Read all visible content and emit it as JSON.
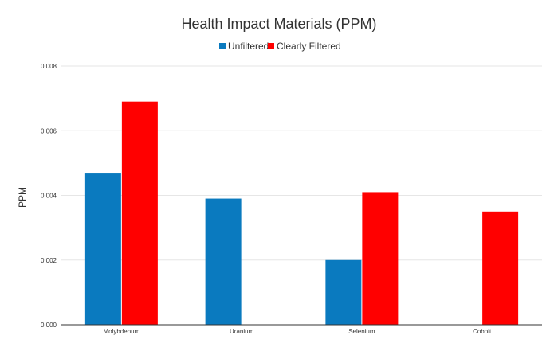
{
  "chart_data": {
    "type": "bar",
    "title": "Health Impact Materials (PPM)",
    "xlabel": "",
    "ylabel": "PPM",
    "categories": [
      "Molybdenum",
      "Uranium",
      "Selenium",
      "Cobolt"
    ],
    "series": [
      {
        "name": "Unfiltered",
        "color": "#0a7abf",
        "values": [
          0.0047,
          0.0039,
          0.002,
          null
        ]
      },
      {
        "name": "Clearly Filtered",
        "color": "#ff0000",
        "values": [
          0.0069,
          null,
          0.0041,
          0.0035
        ]
      }
    ],
    "ylim": [
      0,
      0.008
    ],
    "yticks": [
      "0.000",
      "0.002",
      "0.004",
      "0.006",
      "0.008"
    ],
    "grid": true,
    "legend_position": "top-center"
  }
}
